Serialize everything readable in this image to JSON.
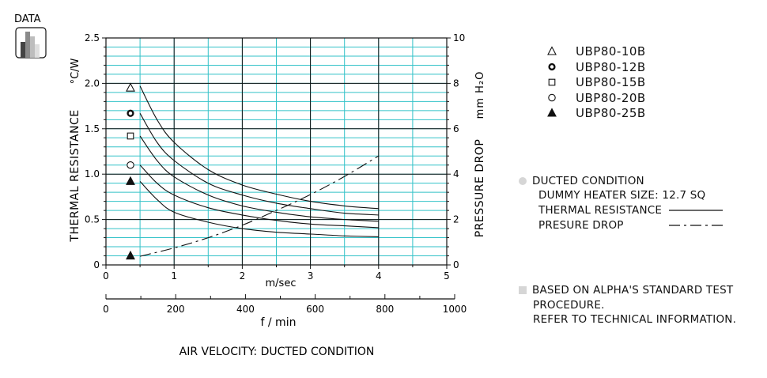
{
  "badge": {
    "label": "DATA"
  },
  "legend": [
    {
      "symbol": "triangle-open",
      "label": "UBP80-10B"
    },
    {
      "symbol": "circle-bold",
      "label": "UBP80-12B"
    },
    {
      "symbol": "square-open",
      "label": "UBP80-15B"
    },
    {
      "symbol": "circle-open",
      "label": "UBP80-20B"
    },
    {
      "symbol": "triangle-filled",
      "label": "UBP80-25B"
    }
  ],
  "conditions": {
    "title": "DUCTED CONDITION",
    "heater": "DUMMY HEATER SIZE: 12.7 SQ",
    "thermal": "THERMAL RESISTANCE",
    "pressure": "PRESURE DROP"
  },
  "notes": {
    "line1": "BASED ON ALPHA'S STANDARD TEST",
    "line2": "PROCEDURE.",
    "line3": "REFER TO TECHNICAL INFORMATION."
  },
  "colors": {
    "grid_minor": "#33c2c8",
    "ink": "#111111",
    "bullet": "#d6d6d6"
  },
  "chart_data": {
    "type": "line",
    "title": "",
    "xlabel": "m/sec",
    "xlim": [
      0,
      5
    ],
    "x_ticks": [
      "0",
      "1",
      "2",
      "3",
      "4",
      "5"
    ],
    "secondary_xlabel": "f / min",
    "secondary_xlim": [
      0,
      1000
    ],
    "secondary_x_ticks": [
      "0",
      "200",
      "400",
      "600",
      "800",
      "1000"
    ],
    "caption": "AIR VELOCITY:  DUCTED CONDITION",
    "ylabel": "THERMAL  RESISTANCE",
    "yunit": "°C/W",
    "ylim": [
      0,
      2.5
    ],
    "y_ticks": [
      "0",
      "0.5",
      "1.0",
      "1.5",
      "2.0",
      "2.5"
    ],
    "y2label": "PRESSURE  DROP",
    "y2unit": "mm H₂O",
    "y2lim": [
      0,
      10
    ],
    "y2_ticks": [
      "0",
      "2",
      "4",
      "6",
      "8",
      "10"
    ],
    "grid": true,
    "series": [
      {
        "name": "UBP80-10B",
        "marker": "triangle-open",
        "marker_value": 1.95,
        "x": [
          0.5,
          0.75,
          1,
          1.5,
          2,
          2.5,
          3,
          3.5,
          4
        ],
        "values": [
          1.97,
          1.6,
          1.35,
          1.05,
          0.88,
          0.78,
          0.7,
          0.65,
          0.62
        ]
      },
      {
        "name": "UBP80-12B",
        "marker": "circle-bold",
        "marker_value": 1.67,
        "x": [
          0.5,
          0.75,
          1,
          1.5,
          2,
          2.5,
          3,
          3.5,
          4
        ],
        "values": [
          1.67,
          1.35,
          1.15,
          0.9,
          0.77,
          0.68,
          0.62,
          0.57,
          0.55
        ]
      },
      {
        "name": "UBP80-15B",
        "marker": "square-open",
        "marker_value": 1.42,
        "x": [
          0.5,
          0.75,
          1,
          1.5,
          2,
          2.5,
          3,
          3.5,
          4
        ],
        "values": [
          1.42,
          1.15,
          0.97,
          0.77,
          0.65,
          0.58,
          0.53,
          0.5,
          0.48
        ]
      },
      {
        "name": "UBP80-20B",
        "marker": "circle-open",
        "marker_value": 1.1,
        "x": [
          0.5,
          0.75,
          1,
          1.5,
          2,
          2.5,
          3,
          3.5,
          4
        ],
        "values": [
          1.1,
          0.9,
          0.77,
          0.63,
          0.55,
          0.49,
          0.45,
          0.43,
          0.41
        ]
      },
      {
        "name": "UBP80-25B",
        "marker": "triangle-filled",
        "marker_value": 0.92,
        "x": [
          0.5,
          0.75,
          1,
          1.5,
          2,
          2.5,
          3,
          3.5,
          4
        ],
        "values": [
          0.92,
          0.72,
          0.58,
          0.47,
          0.4,
          0.36,
          0.34,
          0.32,
          0.31
        ]
      }
    ],
    "pressure_drop": {
      "marker": "triangle-filled",
      "marker_value": 0.4,
      "x": [
        0.5,
        1,
        1.5,
        2,
        2.5,
        3,
        3.5,
        4
      ],
      "values": [
        0.38,
        0.75,
        1.2,
        1.75,
        2.4,
        3.1,
        3.9,
        4.8
      ]
    }
  }
}
